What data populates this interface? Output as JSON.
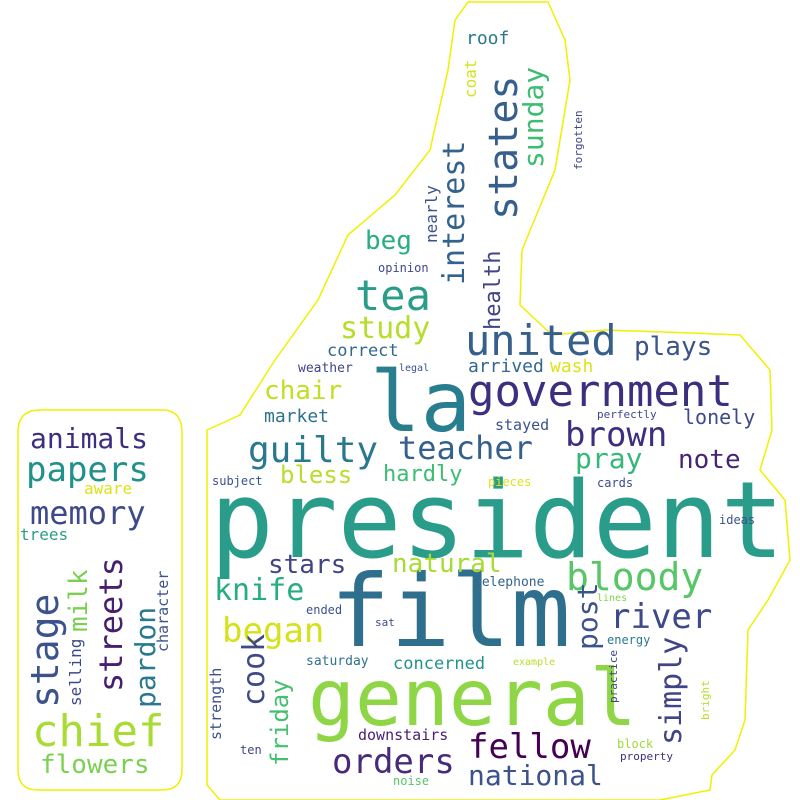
{
  "words": [
    {
      "text": "president",
      "color": "#2a9d8a"
    },
    {
      "text": "film",
      "color": "#2e6f8e"
    },
    {
      "text": "general",
      "color": "#8ed645"
    },
    {
      "text": "la",
      "color": "#287d8e"
    },
    {
      "text": "government",
      "color": "#3b2f7f"
    },
    {
      "text": "united",
      "color": "#355f8d"
    },
    {
      "text": "tea",
      "color": "#2a9d8a"
    },
    {
      "text": "states",
      "color": "#355f8d"
    },
    {
      "text": "interest",
      "color": "#33638d"
    },
    {
      "text": "guilty",
      "color": "#2a788e"
    },
    {
      "text": "teacher",
      "color": "#355f8d"
    },
    {
      "text": "brown",
      "color": "#3b2f7f"
    },
    {
      "text": "pray",
      "color": "#35b779"
    },
    {
      "text": "note",
      "color": "#482475"
    },
    {
      "text": "bloody",
      "color": "#56c667"
    },
    {
      "text": "river",
      "color": "#3e4989"
    },
    {
      "text": "study",
      "color": "#b5de2b"
    },
    {
      "text": "beg",
      "color": "#29af7f"
    },
    {
      "text": "sunday",
      "color": "#3dbc74"
    },
    {
      "text": "health",
      "color": "#414487"
    },
    {
      "text": "plays",
      "color": "#3b528b"
    },
    {
      "text": "chair",
      "color": "#c0df25"
    },
    {
      "text": "bless",
      "color": "#b8de29"
    },
    {
      "text": "hardly",
      "color": "#3dbc74"
    },
    {
      "text": "lonely",
      "color": "#3e4989"
    },
    {
      "text": "stars",
      "color": "#414487"
    },
    {
      "text": "natural",
      "color": "#a8db34"
    },
    {
      "text": "knife",
      "color": "#27ad81"
    },
    {
      "text": "began",
      "color": "#d5e21a"
    },
    {
      "text": "cook",
      "color": "#3e4989"
    },
    {
      "text": "friday",
      "color": "#45bf70"
    },
    {
      "text": "post",
      "color": "#3b528b"
    },
    {
      "text": "simply",
      "color": "#414487"
    },
    {
      "text": "fellow",
      "color": "#440154"
    },
    {
      "text": "orders",
      "color": "#472a7a"
    },
    {
      "text": "national",
      "color": "#3b528b"
    },
    {
      "text": "concerned",
      "color": "#20938c"
    },
    {
      "text": "arrived",
      "color": "#31688e"
    },
    {
      "text": "wash",
      "color": "#dde318"
    },
    {
      "text": "correct",
      "color": "#31688e"
    },
    {
      "text": "market",
      "color": "#2c728e"
    },
    {
      "text": "stayed",
      "color": "#3b528b"
    },
    {
      "text": "weather",
      "color": "#414487"
    },
    {
      "text": "legal",
      "color": "#3b528b"
    },
    {
      "text": "perfectly",
      "color": "#3e4989"
    },
    {
      "text": "subject",
      "color": "#3b528b"
    },
    {
      "text": "pieces",
      "color": "#dde318"
    },
    {
      "text": "cards",
      "color": "#3e4989"
    },
    {
      "text": "ideas",
      "color": "#3b528b"
    },
    {
      "text": "telephone",
      "color": "#33638d"
    },
    {
      "text": "lines",
      "color": "#7fd34e"
    },
    {
      "text": "energy",
      "color": "#2a788e"
    },
    {
      "text": "ended",
      "color": "#3b528b"
    },
    {
      "text": "sat",
      "color": "#3e4989"
    },
    {
      "text": "saturday",
      "color": "#2c728e"
    },
    {
      "text": "example",
      "color": "#b8de29"
    },
    {
      "text": "practice",
      "color": "#414487"
    },
    {
      "text": "bright",
      "color": "#b8de29"
    },
    {
      "text": "strength",
      "color": "#3b528b"
    },
    {
      "text": "ten",
      "color": "#414487"
    },
    {
      "text": "downstairs",
      "color": "#481f70"
    },
    {
      "text": "block",
      "color": "#9fda3a"
    },
    {
      "text": "property",
      "color": "#3b2f7f"
    },
    {
      "text": "noise",
      "color": "#56c667"
    },
    {
      "text": "nearly",
      "color": "#3b528b"
    },
    {
      "text": "opinion",
      "color": "#3e4989"
    },
    {
      "text": "coat",
      "color": "#d5e21a"
    },
    {
      "text": "roof",
      "color": "#2a788e"
    },
    {
      "text": "forgotten",
      "color": "#414487"
    },
    {
      "text": "animals",
      "color": "#3b2f7f"
    },
    {
      "text": "papers",
      "color": "#21918c"
    },
    {
      "text": "aware",
      "color": "#dde318"
    },
    {
      "text": "memory",
      "color": "#3e4989"
    },
    {
      "text": "trees",
      "color": "#2a9d8a"
    },
    {
      "text": "stage",
      "color": "#3b528b"
    },
    {
      "text": "milk",
      "color": "#7ad151"
    },
    {
      "text": "streets",
      "color": "#481f70"
    },
    {
      "text": "pardon",
      "color": "#2a788e"
    },
    {
      "text": "character",
      "color": "#3b528b"
    },
    {
      "text": "selling",
      "color": "#3e4989"
    },
    {
      "text": "chief",
      "color": "#a8db34"
    },
    {
      "text": "flowers",
      "color": "#7ad151"
    }
  ]
}
